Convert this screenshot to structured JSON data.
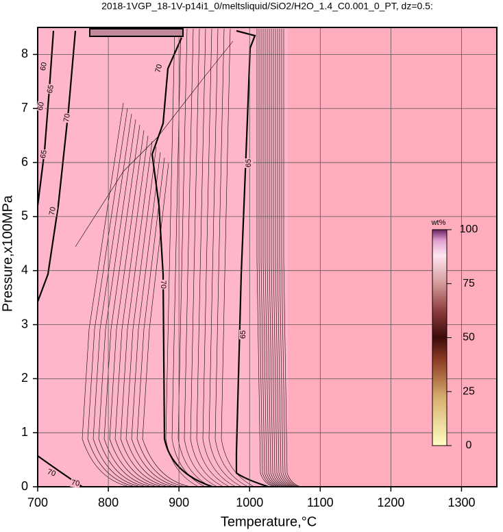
{
  "chart_data": {
    "type": "contour",
    "title": "2018-1VGP_18-1V-p14i1_0/meltsliquid/SiO2/H2O_1.4_C0.001_0_PT, dz=0.5:",
    "x_label": "Temperature,°C",
    "y_label": "Pressure,x100MPa",
    "xlim": [
      700,
      1350
    ],
    "xticks": [
      700,
      800,
      900,
      1000,
      1100,
      1200,
      1300
    ],
    "ylim": [
      0,
      8.5
    ],
    "yticks": [
      0,
      1,
      2,
      3,
      4,
      5,
      6,
      7,
      8
    ],
    "grid": true,
    "contour_labels": [
      65,
      65,
      70,
      70,
      70,
      70,
      65,
      60,
      60,
      65,
      70,
      70
    ],
    "colorbar": {
      "label": "wt%",
      "lim": [
        0,
        100
      ],
      "ticks": [
        0,
        25,
        50,
        75,
        100
      ]
    }
  }
}
